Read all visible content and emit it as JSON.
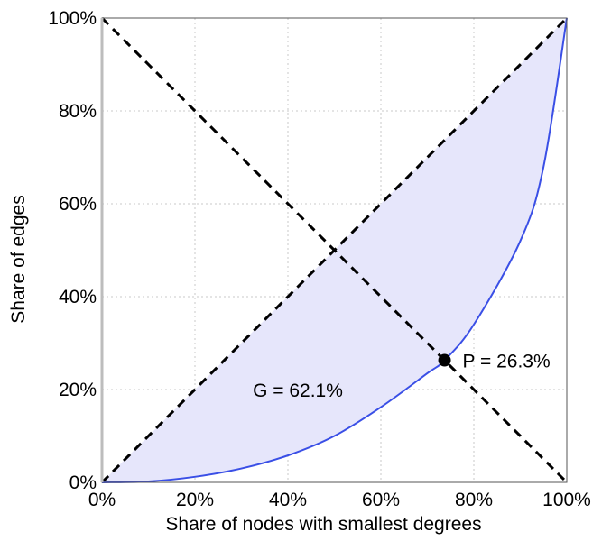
{
  "chart_data": {
    "type": "area",
    "title": "",
    "xlabel": "Share of nodes with smallest degrees",
    "ylabel": "Share of edges",
    "xlim": [
      0,
      100
    ],
    "ylim": [
      0,
      100
    ],
    "x_ticks": [
      "0%",
      "20%",
      "40%",
      "60%",
      "80%",
      "100%"
    ],
    "y_ticks": [
      "0%",
      "20%",
      "40%",
      "60%",
      "80%",
      "100%"
    ],
    "grid": true,
    "series": [
      {
        "style": "solid blue curve with shaded area up to diagonal",
        "x": [
          0,
          10,
          20,
          30,
          40,
          50,
          60,
          70,
          73.7,
          80,
          90,
          95,
          100
        ],
        "y": [
          0,
          0.2,
          1.2,
          3.0,
          5.8,
          10.0,
          16.2,
          23.5,
          26.3,
          34.0,
          52.0,
          68.0,
          100.0
        ]
      }
    ],
    "reference_lines": [
      {
        "style": "black dashed",
        "x": [
          0,
          100
        ],
        "y": [
          0,
          100
        ]
      },
      {
        "style": "black dashed",
        "x": [
          0,
          100
        ],
        "y": [
          100,
          0
        ]
      }
    ],
    "annotations": [
      {
        "text": "G = 62.1%",
        "x": 34,
        "y": 20
      },
      {
        "text": "P = 26.3%",
        "x": 73.7,
        "y": 26.3,
        "marker": "point"
      }
    ],
    "colors": {
      "curve": "#3a4fe6",
      "fill": "#e6e6fb",
      "grid": "#c9c9c9",
      "reference": "#000000"
    }
  }
}
